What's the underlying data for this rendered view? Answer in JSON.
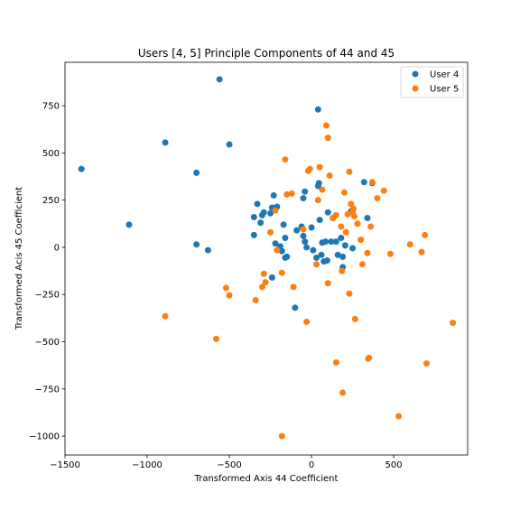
{
  "chart_data": {
    "type": "scatter",
    "title": "Users [4, 5] Principle Components of 44 and 45",
    "xlabel": "Transformed Axis 44 Coefficient",
    "ylabel": "Transformed Acis 45 Coefficient",
    "xlim": [
      -1500,
      950
    ],
    "ylim": [
      -1100,
      980
    ],
    "xticks": [
      -1500,
      -1000,
      -500,
      0,
      500
    ],
    "yticks": [
      -1000,
      -750,
      -500,
      -250,
      0,
      250,
      500,
      750
    ],
    "grid": false,
    "legend": "top-right",
    "series": [
      {
        "name": "User 4",
        "color": "#1f77b4",
        "points": [
          [
            -1400,
            415
          ],
          [
            -1110,
            120
          ],
          [
            -890,
            555
          ],
          [
            -700,
            395
          ],
          [
            -700,
            15
          ],
          [
            -630,
            -15
          ],
          [
            -560,
            890
          ],
          [
            -500,
            545
          ],
          [
            -350,
            160
          ],
          [
            -350,
            65
          ],
          [
            -330,
            230
          ],
          [
            -310,
            130
          ],
          [
            -300,
            170
          ],
          [
            -290,
            185
          ],
          [
            -250,
            180
          ],
          [
            -240,
            210
          ],
          [
            -230,
            275
          ],
          [
            -220,
            20
          ],
          [
            -210,
            215
          ],
          [
            -190,
            5
          ],
          [
            -180,
            -20
          ],
          [
            -170,
            120
          ],
          [
            -160,
            50
          ],
          [
            -160,
            -55
          ],
          [
            -150,
            -50
          ],
          [
            -240,
            -160
          ],
          [
            -100,
            -320
          ],
          [
            -90,
            90
          ],
          [
            -60,
            110
          ],
          [
            -50,
            60
          ],
          [
            -40,
            30
          ],
          [
            -30,
            0
          ],
          [
            -50,
            260
          ],
          [
            -40,
            295
          ],
          [
            0,
            105
          ],
          [
            10,
            -15
          ],
          [
            30,
            -55
          ],
          [
            40,
            730
          ],
          [
            40,
            325
          ],
          [
            45,
            340
          ],
          [
            50,
            145
          ],
          [
            60,
            -40
          ],
          [
            65,
            25
          ],
          [
            75,
            -75
          ],
          [
            85,
            30
          ],
          [
            95,
            -70
          ],
          [
            100,
            185
          ],
          [
            120,
            30
          ],
          [
            130,
            155
          ],
          [
            150,
            30
          ],
          [
            160,
            -40
          ],
          [
            180,
            50
          ],
          [
            190,
            -50
          ],
          [
            190,
            -105
          ],
          [
            205,
            10
          ],
          [
            240,
            190
          ],
          [
            250,
            -5
          ],
          [
            320,
            345
          ],
          [
            340,
            155
          ],
          [
            370,
            340
          ]
        ]
      },
      {
        "name": "User 5",
        "color": "#ff7f0e",
        "points": [
          [
            -890,
            -365
          ],
          [
            -580,
            -485
          ],
          [
            -520,
            -215
          ],
          [
            -500,
            -255
          ],
          [
            -340,
            -280
          ],
          [
            -300,
            -210
          ],
          [
            -290,
            -140
          ],
          [
            -280,
            -185
          ],
          [
            -250,
            80
          ],
          [
            -220,
            195
          ],
          [
            -210,
            -15
          ],
          [
            -180,
            -135
          ],
          [
            -180,
            -1000
          ],
          [
            -160,
            465
          ],
          [
            -150,
            280
          ],
          [
            -120,
            285
          ],
          [
            -110,
            -210
          ],
          [
            -50,
            95
          ],
          [
            -30,
            -395
          ],
          [
            -20,
            405
          ],
          [
            -10,
            415
          ],
          [
            30,
            -90
          ],
          [
            40,
            250
          ],
          [
            50,
            425
          ],
          [
            65,
            305
          ],
          [
            90,
            645
          ],
          [
            100,
            580
          ],
          [
            100,
            -190
          ],
          [
            110,
            380
          ],
          [
            130,
            155
          ],
          [
            150,
            170
          ],
          [
            150,
            -610
          ],
          [
            180,
            110
          ],
          [
            185,
            -125
          ],
          [
            190,
            -770
          ],
          [
            200,
            290
          ],
          [
            210,
            80
          ],
          [
            220,
            175
          ],
          [
            230,
            400
          ],
          [
            230,
            -245
          ],
          [
            240,
            230
          ],
          [
            250,
            185
          ],
          [
            255,
            205
          ],
          [
            260,
            165
          ],
          [
            265,
            -380
          ],
          [
            280,
            125
          ],
          [
            300,
            40
          ],
          [
            310,
            -90
          ],
          [
            340,
            -30
          ],
          [
            345,
            -590
          ],
          [
            350,
            -585
          ],
          [
            360,
            110
          ],
          [
            370,
            345
          ],
          [
            400,
            260
          ],
          [
            440,
            300
          ],
          [
            480,
            -35
          ],
          [
            530,
            -895
          ],
          [
            600,
            15
          ],
          [
            670,
            -25
          ],
          [
            690,
            65
          ],
          [
            700,
            -615
          ],
          [
            860,
            -400
          ]
        ]
      }
    ]
  }
}
